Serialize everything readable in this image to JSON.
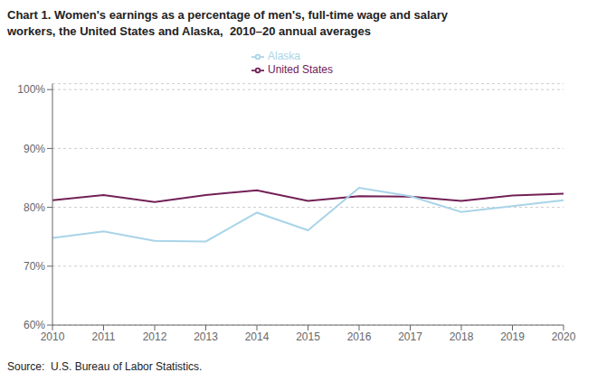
{
  "chart_data": {
    "type": "line",
    "title": "Chart 1. Women's earnings as a percentage of men's, full-time wage and salary\nworkers, the United States and Alaska,  2010–20 annual averages",
    "source": "Source:  U.S. Bureau of Labor Statistics.",
    "x": [
      2010,
      2011,
      2012,
      2013,
      2014,
      2015,
      2016,
      2017,
      2018,
      2019,
      2020
    ],
    "xlim": [
      2010,
      2020
    ],
    "xticks": [
      2010,
      2011,
      2012,
      2013,
      2014,
      2015,
      2016,
      2017,
      2018,
      2019,
      2020
    ],
    "series": [
      {
        "name": "United States",
        "color": "#722057",
        "values": [
          81.2,
          82.1,
          80.9,
          82.1,
          82.9,
          81.1,
          81.9,
          81.8,
          81.1,
          82.0,
          82.3
        ]
      },
      {
        "name": "Alaska",
        "color": "#a8d4e8",
        "values": [
          74.8,
          75.9,
          74.3,
          74.2,
          79.1,
          76.1,
          83.3,
          81.9,
          79.2,
          80.2,
          81.2
        ]
      }
    ],
    "ylim": [
      60,
      101
    ],
    "yticks": [
      {
        "value": 60,
        "label": "60%"
      },
      {
        "value": 70,
        "label": "70%"
      },
      {
        "value": 80,
        "label": "80%"
      },
      {
        "value": 90,
        "label": "90%"
      },
      {
        "value": 100,
        "label": "100%"
      }
    ],
    "grid": "y",
    "legend": "top"
  }
}
